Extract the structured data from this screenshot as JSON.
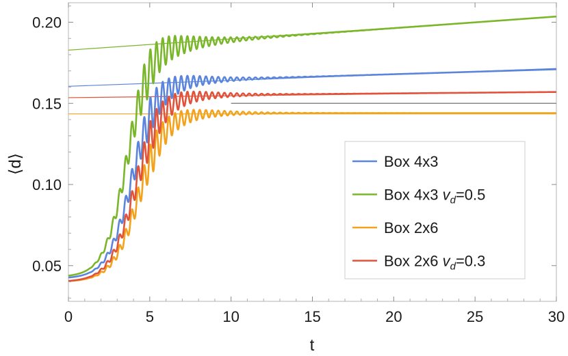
{
  "chart_data": {
    "type": "line",
    "title": "",
    "xlabel": "t",
    "ylabel": "⟨d⟩",
    "xlim": [
      0,
      30
    ],
    "ylim": [
      0.028,
      0.212
    ],
    "xticks": [
      0,
      5,
      10,
      15,
      20,
      25,
      30
    ],
    "xtick_labels": [
      "0",
      "5",
      "10",
      "15",
      "20",
      "25",
      "30"
    ],
    "yticks": [
      0.05,
      0.1,
      0.15,
      0.2
    ],
    "ytick_labels": [
      "0.05",
      "0.10",
      "0.15",
      "0.20"
    ],
    "grid": false,
    "legend_position": "lower-right",
    "series": [
      {
        "name": "Box 4x3",
        "color": "#5b84dc",
        "start": 0.042,
        "plateau": 0.164,
        "t_center": 3.9,
        "width": 0.75,
        "osc_amp": 0.012,
        "osc_period": 0.38,
        "osc_decay": 2.2,
        "osc_peak_t": 5.0,
        "drift_end": 0.171,
        "fit_line": {
          "x": [
            0,
            30
          ],
          "y": [
            0.1605,
            0.1715
          ]
        }
      },
      {
        "name": "Box 4x3 v_d=0.5",
        "name_prefix": "Box 4x3 ",
        "name_var": "v",
        "name_sub": "d",
        "name_suffix": "=0.5",
        "color": "#7ab62a",
        "start": 0.043,
        "plateau": 0.187,
        "t_center": 3.6,
        "width": 0.7,
        "osc_amp": 0.014,
        "osc_period": 0.38,
        "osc_decay": 2.4,
        "osc_peak_t": 4.8,
        "drift_end": 0.2035,
        "fit_line": {
          "x": [
            0,
            30
          ],
          "y": [
            0.1828,
            0.2035
          ]
        }
      },
      {
        "name": "Box 2x6",
        "color": "#f2a21b",
        "start": 0.04,
        "plateau": 0.144,
        "t_center": 4.3,
        "width": 0.8,
        "osc_amp": 0.011,
        "osc_period": 0.38,
        "osc_decay": 2.2,
        "osc_peak_t": 5.2,
        "drift_end": 0.144,
        "fit_line": {
          "x": [
            0,
            30
          ],
          "y": [
            0.1435,
            0.1435
          ]
        }
      },
      {
        "name": "Box 2x6 v_d=0.3",
        "name_prefix": "Box 2x6 ",
        "name_var": "v",
        "name_sub": "d",
        "name_suffix": "=0.3",
        "color": "#e0533a",
        "start": 0.04,
        "plateau": 0.155,
        "t_center": 4.1,
        "width": 0.78,
        "osc_amp": 0.011,
        "osc_period": 0.38,
        "osc_decay": 2.2,
        "osc_peak_t": 5.1,
        "drift_end": 0.157,
        "fit_line": {
          "x": [
            0,
            30
          ],
          "y": [
            0.1535,
            0.157
          ]
        }
      }
    ],
    "reference_line": {
      "color": "#888888",
      "x": [
        10,
        30
      ],
      "y": [
        0.15,
        0.15
      ]
    }
  }
}
